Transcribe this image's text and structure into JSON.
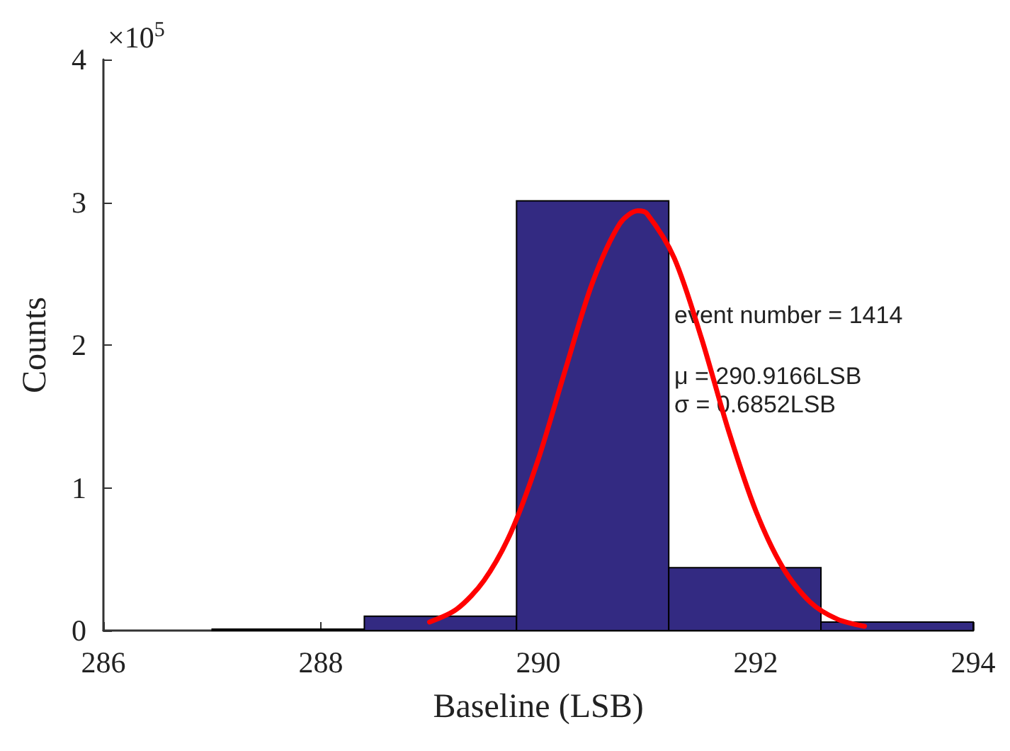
{
  "chart_data": {
    "type": "histogram",
    "xlabel": "Baseline (LSB)",
    "ylabel": "Counts",
    "bins": [
      287,
      288.4,
      289.8,
      291.2,
      292.6,
      294
    ],
    "values": [
      0.01,
      0.1,
      3.01,
      0.44,
      0.06
    ],
    "color": "#332a82",
    "xlim": [
      286,
      294
    ],
    "xticks": [
      286,
      288,
      290,
      292,
      294
    ],
    "ylim": [
      0,
      4
    ],
    "yticks": [
      0,
      1,
      2,
      3,
      4
    ],
    "series": [
      {
        "type": "line",
        "color": "#ff0000",
        "x": [
          289,
          289.25,
          289.5,
          289.75,
          290,
          290.25,
          290.5,
          290.75,
          290.9166,
          291,
          291.25,
          291.5,
          291.75,
          292,
          292.25,
          292.5,
          292.75,
          293
        ],
        "values": [
          0.06,
          0.15,
          0.35,
          0.69,
          1.2,
          1.83,
          2.44,
          2.85,
          2.94,
          2.92,
          2.61,
          2.05,
          1.4,
          0.84,
          0.44,
          0.2,
          0.08,
          0.03
        ]
      }
    ],
    "annotations": [
      "×10$^{5}$",
      "event number = 1414",
      "μ = 290.9166LSB",
      "σ = 0.6852LSB"
    ],
    "grid": false,
    "marker": "none",
    "line_style": "solid"
  }
}
